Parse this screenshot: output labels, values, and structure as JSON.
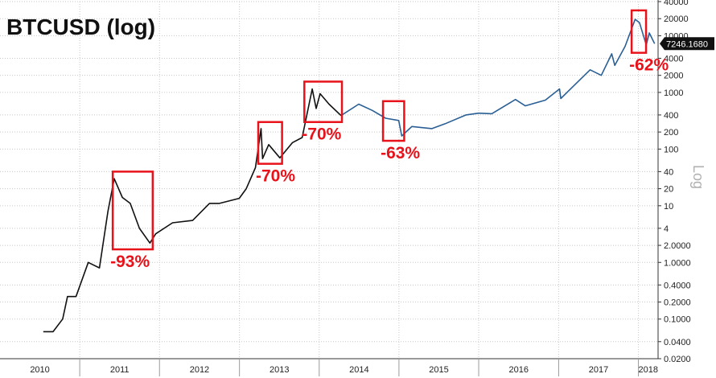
{
  "chart_data": {
    "type": "line",
    "title": "BTCUSD (log)",
    "scale_label": "Log",
    "y_scale": "log",
    "ylim": [
      0.02,
      40000
    ],
    "xlim": [
      "2010-01-01",
      "2018-04-01"
    ],
    "grid": true,
    "x_ticks": [
      "2010",
      "2011",
      "2012",
      "2013",
      "2014",
      "2015",
      "2016",
      "2017",
      "2018"
    ],
    "y_ticks": [
      {
        "value": 0.02,
        "label": "0.0200"
      },
      {
        "value": 0.04,
        "label": "0.0400"
      },
      {
        "value": 0.1,
        "label": "0.1000"
      },
      {
        "value": 0.2,
        "label": "0.2000"
      },
      {
        "value": 0.4,
        "label": "0.4000"
      },
      {
        "value": 1,
        "label": "1.0000"
      },
      {
        "value": 2,
        "label": "2.0000"
      },
      {
        "value": 4,
        "label": "4"
      },
      {
        "value": 10,
        "label": "10"
      },
      {
        "value": 20,
        "label": "20"
      },
      {
        "value": 40,
        "label": "40"
      },
      {
        "value": 100,
        "label": "100"
      },
      {
        "value": 200,
        "label": "200"
      },
      {
        "value": 400,
        "label": "400"
      },
      {
        "value": 1000,
        "label": "1000"
      },
      {
        "value": 2000,
        "label": "2000"
      },
      {
        "value": 4000,
        "label": "4000"
      },
      {
        "value": 10000,
        "label": "10000"
      },
      {
        "value": 20000,
        "label": "20000"
      },
      {
        "value": 40000,
        "label": "40000"
      }
    ],
    "last_value": {
      "value": 7246.168,
      "label": "7246.1680"
    },
    "series": [
      {
        "color": "#111111",
        "x": [
          "2010-07-18",
          "2010-09-01",
          "2010-10-15",
          "2010-11-06",
          "2010-12-15",
          "2011-02-09",
          "2011-04-01",
          "2011-05-10",
          "2011-06-08",
          "2011-07-15",
          "2011-08-20",
          "2011-10-01",
          "2011-11-18",
          "2011-12-15",
          "2012-03-01",
          "2012-06-01",
          "2012-08-17",
          "2012-10-01",
          "2012-12-31",
          "2013-02-01",
          "2013-03-15",
          "2013-04-10",
          "2013-04-17",
          "2013-05-15",
          "2013-07-05",
          "2013-09-01",
          "2013-10-15",
          "2013-11-30",
          "2013-12-18",
          "2014-01-05",
          "2014-02-15",
          "2014-04-11"
        ],
        "y": [
          0.06,
          0.06,
          0.1,
          0.25,
          0.25,
          1.0,
          0.8,
          8,
          30,
          14,
          11,
          4,
          2.2,
          3.2,
          5,
          5.5,
          11,
          11,
          13.5,
          20,
          47,
          230,
          68,
          120,
          70,
          130,
          160,
          1150,
          520,
          950,
          620,
          390
        ]
      },
      {
        "color": "#2a5f95",
        "x": [
          "2014-04-11",
          "2014-07-01",
          "2014-09-01",
          "2014-11-01",
          "2014-12-31",
          "2015-01-14",
          "2015-03-01",
          "2015-06-01",
          "2015-08-01",
          "2015-11-04",
          "2016-01-01",
          "2016-03-01",
          "2016-06-17",
          "2016-08-01",
          "2016-11-01",
          "2017-01-05",
          "2017-01-11",
          "2017-03-01",
          "2017-05-25",
          "2017-07-15",
          "2017-09-01",
          "2017-09-15",
          "2017-11-01",
          "2017-12-17",
          "2018-01-06",
          "2018-02-06",
          "2018-02-20",
          "2018-03-16"
        ],
        "y": [
          390,
          620,
          480,
          350,
          320,
          170,
          250,
          230,
          280,
          400,
          430,
          420,
          750,
          580,
          730,
          1150,
          780,
          1200,
          2500,
          2000,
          4800,
          3000,
          6500,
          19500,
          17000,
          6900,
          11200,
          7246.168
        ]
      }
    ],
    "drawdowns": [
      {
        "label": "-93%",
        "x_start": "2011-06-01",
        "x_end": "2011-12-01",
        "y_high": 40,
        "y_low": 1.7
      },
      {
        "label": "-70%",
        "x_start": "2013-03-28",
        "x_end": "2013-07-15",
        "y_high": 300,
        "y_low": 55
      },
      {
        "label": "-70%",
        "x_start": "2013-10-25",
        "x_end": "2014-04-15",
        "y_high": 1550,
        "y_low": 300
      },
      {
        "label": "-63%",
        "x_start": "2014-10-20",
        "x_end": "2015-01-25",
        "y_high": 700,
        "y_low": 140
      },
      {
        "label": "-62%",
        "x_start": "2017-12-01",
        "x_end": "2018-02-05",
        "y_high": 28000,
        "y_low": 5000
      }
    ]
  }
}
